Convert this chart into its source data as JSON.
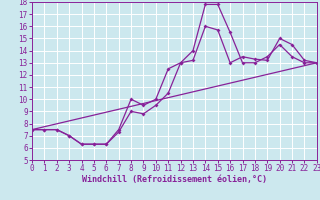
{
  "xlabel": "Windchill (Refroidissement éolien,°C)",
  "background_color": "#cce8ee",
  "grid_color": "#ffffff",
  "line_color": "#882299",
  "ylim": [
    5,
    18
  ],
  "xlim": [
    0,
    23
  ],
  "yticks": [
    5,
    6,
    7,
    8,
    9,
    10,
    11,
    12,
    13,
    14,
    15,
    16,
    17,
    18
  ],
  "xticks": [
    0,
    1,
    2,
    3,
    4,
    5,
    6,
    7,
    8,
    9,
    10,
    11,
    12,
    13,
    14,
    15,
    16,
    17,
    18,
    19,
    20,
    21,
    22,
    23
  ],
  "curve1_x": [
    0,
    1,
    2,
    3,
    4,
    5,
    6,
    7,
    8,
    9,
    10,
    11,
    12,
    13,
    14,
    15,
    16,
    17,
    18,
    19,
    20,
    21,
    22,
    23
  ],
  "curve1_y": [
    7.5,
    7.5,
    7.5,
    7.0,
    6.3,
    6.3,
    6.3,
    7.5,
    10.0,
    9.5,
    10.0,
    12.5,
    13.0,
    14.0,
    17.8,
    17.8,
    15.5,
    13.0,
    13.0,
    13.5,
    14.5,
    13.5,
    13.0,
    13.0
  ],
  "curve2_x": [
    0,
    1,
    2,
    3,
    4,
    5,
    6,
    7,
    8,
    9,
    10,
    11,
    12,
    13,
    14,
    15,
    16,
    17,
    18,
    19,
    20,
    21,
    22,
    23
  ],
  "curve2_y": [
    7.5,
    7.5,
    7.5,
    7.0,
    6.3,
    6.3,
    6.3,
    7.3,
    9.0,
    8.8,
    9.5,
    10.5,
    13.0,
    13.2,
    16.0,
    15.7,
    13.0,
    13.5,
    13.3,
    13.2,
    15.0,
    14.5,
    13.2,
    13.0
  ],
  "trend_x": [
    0,
    23
  ],
  "trend_y": [
    7.5,
    13.0
  ],
  "tick_color": "#882299",
  "xlabel_fontsize": 6,
  "tick_fontsize": 5.5
}
